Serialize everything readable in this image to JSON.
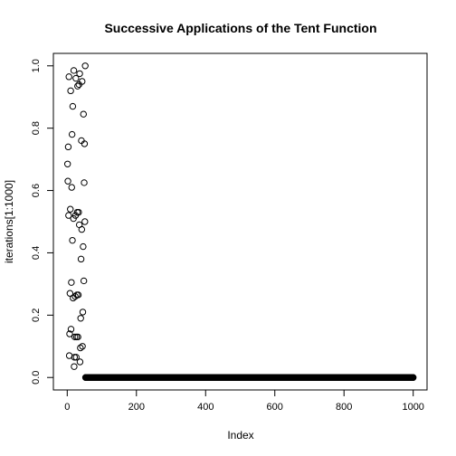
{
  "chart_data": {
    "type": "scatter",
    "title": "Successive Applications of the Tent Function",
    "xlabel": "Index",
    "ylabel": "iterations[1:1000]",
    "xlim": [
      -40,
      1040
    ],
    "ylim": [
      -0.04,
      1.04
    ],
    "x_ticks": [
      0,
      200,
      400,
      600,
      800,
      1000
    ],
    "y_ticks": [
      0.0,
      0.2,
      0.4,
      0.6,
      0.8,
      1.0
    ],
    "x_tick_labels": [
      "0",
      "200",
      "400",
      "600",
      "800",
      "1000"
    ],
    "y_tick_labels": [
      "0.0",
      "0.2",
      "0.4",
      "0.6",
      "0.8",
      "1.0"
    ],
    "grid": false,
    "marker": "open-circle",
    "points_early": [
      [
        1,
        0.685
      ],
      [
        2,
        0.63
      ],
      [
        3,
        0.74
      ],
      [
        4,
        0.52
      ],
      [
        5,
        0.965
      ],
      [
        6,
        0.07
      ],
      [
        7,
        0.14
      ],
      [
        8,
        0.27
      ],
      [
        9,
        0.54
      ],
      [
        10,
        0.92
      ],
      [
        11,
        0.155
      ],
      [
        12,
        0.305
      ],
      [
        13,
        0.61
      ],
      [
        14,
        0.78
      ],
      [
        15,
        0.44
      ],
      [
        16,
        0.87
      ],
      [
        17,
        0.255
      ],
      [
        18,
        0.51
      ],
      [
        19,
        0.985
      ],
      [
        20,
        0.035
      ],
      [
        21,
        0.065
      ],
      [
        22,
        0.13
      ],
      [
        23,
        0.26
      ],
      [
        24,
        0.52
      ],
      [
        25,
        0.96
      ],
      [
        26,
        0.065
      ],
      [
        27,
        0.13
      ],
      [
        28,
        0.265
      ],
      [
        29,
        0.53
      ],
      [
        30,
        0.935
      ],
      [
        31,
        0.13
      ],
      [
        32,
        0.265
      ],
      [
        33,
        0.53
      ],
      [
        34,
        0.94
      ],
      [
        35,
        0.49
      ],
      [
        36,
        0.975
      ],
      [
        37,
        0.05
      ],
      [
        38,
        0.095
      ],
      [
        39,
        0.19
      ],
      [
        40,
        0.38
      ],
      [
        41,
        0.76
      ],
      [
        42,
        0.475
      ],
      [
        43,
        0.95
      ],
      [
        44,
        0.1
      ],
      [
        45,
        0.21
      ],
      [
        46,
        0.42
      ],
      [
        47,
        0.845
      ],
      [
        48,
        0.31
      ],
      [
        49,
        0.625
      ],
      [
        50,
        0.75
      ],
      [
        51,
        0.5
      ],
      [
        52,
        1.0
      ]
    ],
    "tail": {
      "x_start": 53,
      "x_end": 1000,
      "y": 0.0
    }
  }
}
